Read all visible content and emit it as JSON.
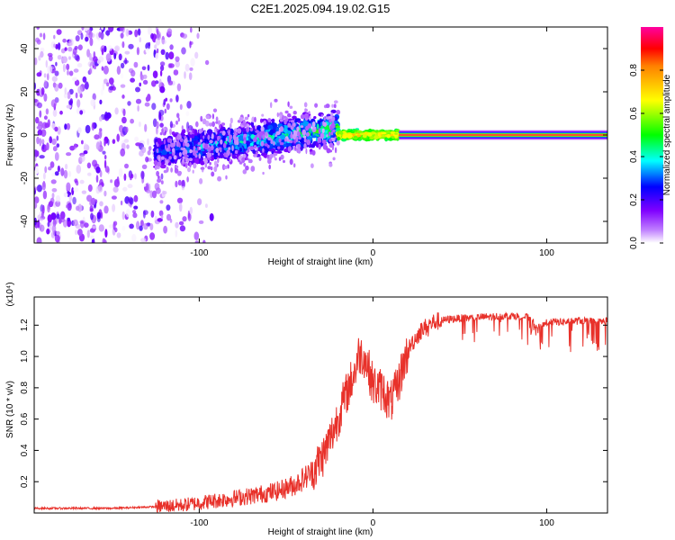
{
  "figure_title": "C2E1.2025.094.19.02.G15",
  "chart_data": [
    {
      "type": "heatmap",
      "xlabel": "Height of straight line (km)",
      "ylabel": "Frequency (Hz)",
      "xlim": [
        -195,
        135
      ],
      "ylim": [
        -50,
        50
      ],
      "x_ticks": [
        -100,
        0,
        100
      ],
      "x_tick_labels": [
        "-100",
        "0",
        "100"
      ],
      "y_ticks": [
        -40,
        -20,
        0,
        20,
        40
      ],
      "y_tick_labels": [
        "-40",
        "-20",
        "0",
        "20",
        "40"
      ],
      "colorbar": {
        "label": "Normalized spectral amplitude",
        "range": [
          0,
          1
        ],
        "ticks": [
          0.0,
          0.2,
          0.4,
          0.6,
          0.8
        ],
        "tick_labels": [
          "0.0",
          "0.2",
          "0.4",
          "0.6",
          "0.8"
        ],
        "colors": [
          "#ffffff",
          "#8000ff",
          "#0000ff",
          "#00ffff",
          "#00ff00",
          "#ffff00",
          "#ff0000",
          "#ff00a0"
        ]
      },
      "regions": [
        {
          "x_range": [
            -195,
            -125
          ],
          "freq_range": [
            -50,
            50
          ],
          "amplitude_range": [
            0.0,
            0.2
          ],
          "description": "scattered noise"
        },
        {
          "x_range": [
            -125,
            -20
          ],
          "freq_center_start": -8,
          "freq_center_end": 3,
          "freq_spread": 10,
          "amplitude_range": [
            0.1,
            0.5
          ]
        },
        {
          "x_range": [
            -20,
            15
          ],
          "freq_center": 0,
          "freq_spread": 3,
          "amplitude_range": [
            0.4,
            0.8
          ]
        },
        {
          "x_range": [
            15,
            135
          ],
          "freq_center": 0,
          "freq_spread": 2,
          "amplitude": 0.95
        }
      ]
    },
    {
      "type": "line",
      "xlabel": "Height of straight line (km)",
      "ylabel": "SNR (10 * v/v)",
      "y_scale_label": "(x10⁴)",
      "xlim": [
        -195,
        135
      ],
      "ylim": [
        0,
        1.38
      ],
      "x_ticks": [
        -100,
        0,
        100
      ],
      "x_tick_labels": [
        "-100",
        "0",
        "100"
      ],
      "y_ticks": [
        0.2,
        0.4,
        0.6,
        0.8,
        1.0,
        1.2
      ],
      "y_tick_labels": [
        "0.2",
        "0.4",
        "0.6",
        "0.8",
        "1.0",
        "1.2"
      ],
      "color": "#e8312a",
      "series": [
        {
          "x": [
            -195,
            -150,
            -125,
            -110,
            -90,
            -70,
            -55,
            -45,
            -35,
            -28,
            -22,
            -18,
            -14,
            -10,
            -8,
            -5,
            -2,
            0,
            3,
            6,
            10,
            14,
            18,
            22,
            28,
            35,
            45,
            60,
            80,
            90,
            95,
            100,
            110,
            120,
            130,
            135
          ],
          "y": [
            0.03,
            0.03,
            0.04,
            0.05,
            0.08,
            0.11,
            0.14,
            0.18,
            0.26,
            0.38,
            0.55,
            0.68,
            0.8,
            0.92,
            1.02,
            1.0,
            0.9,
            0.82,
            0.8,
            0.78,
            0.7,
            0.8,
            0.97,
            1.08,
            1.17,
            1.22,
            1.24,
            1.25,
            1.26,
            1.25,
            1.18,
            1.22,
            1.22,
            1.23,
            1.22,
            1.23
          ]
        }
      ]
    }
  ]
}
